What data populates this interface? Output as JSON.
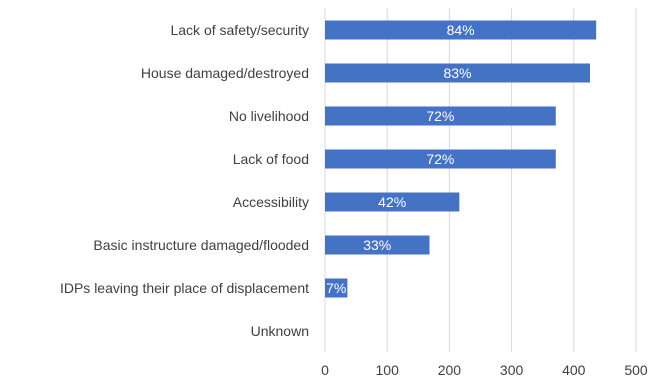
{
  "chart_data": {
    "type": "bar",
    "orientation": "horizontal",
    "categories": [
      "Lack of safety/security",
      "House damaged/destroyed",
      "No livelihood",
      "Lack of food",
      "Accessibility",
      "Basic instructure damaged/flooded",
      "IDPs leaving their place of displacement",
      "Unknown"
    ],
    "values": [
      436,
      426,
      371,
      371,
      216,
      168,
      36,
      0
    ],
    "data_labels": [
      "84%",
      "83%",
      "72%",
      "72%",
      "42%",
      "33%",
      "7%",
      ""
    ],
    "title": "",
    "xlabel": "",
    "ylabel": "",
    "xlim": [
      0,
      500
    ],
    "xticks": [
      0,
      100,
      200,
      300,
      400,
      500
    ],
    "grid": "vertical",
    "legend": "none",
    "colors": {
      "bar": "#4472C4",
      "grid": "#D9D9D9",
      "text": "#404040",
      "data_label": "#ffffff"
    }
  }
}
